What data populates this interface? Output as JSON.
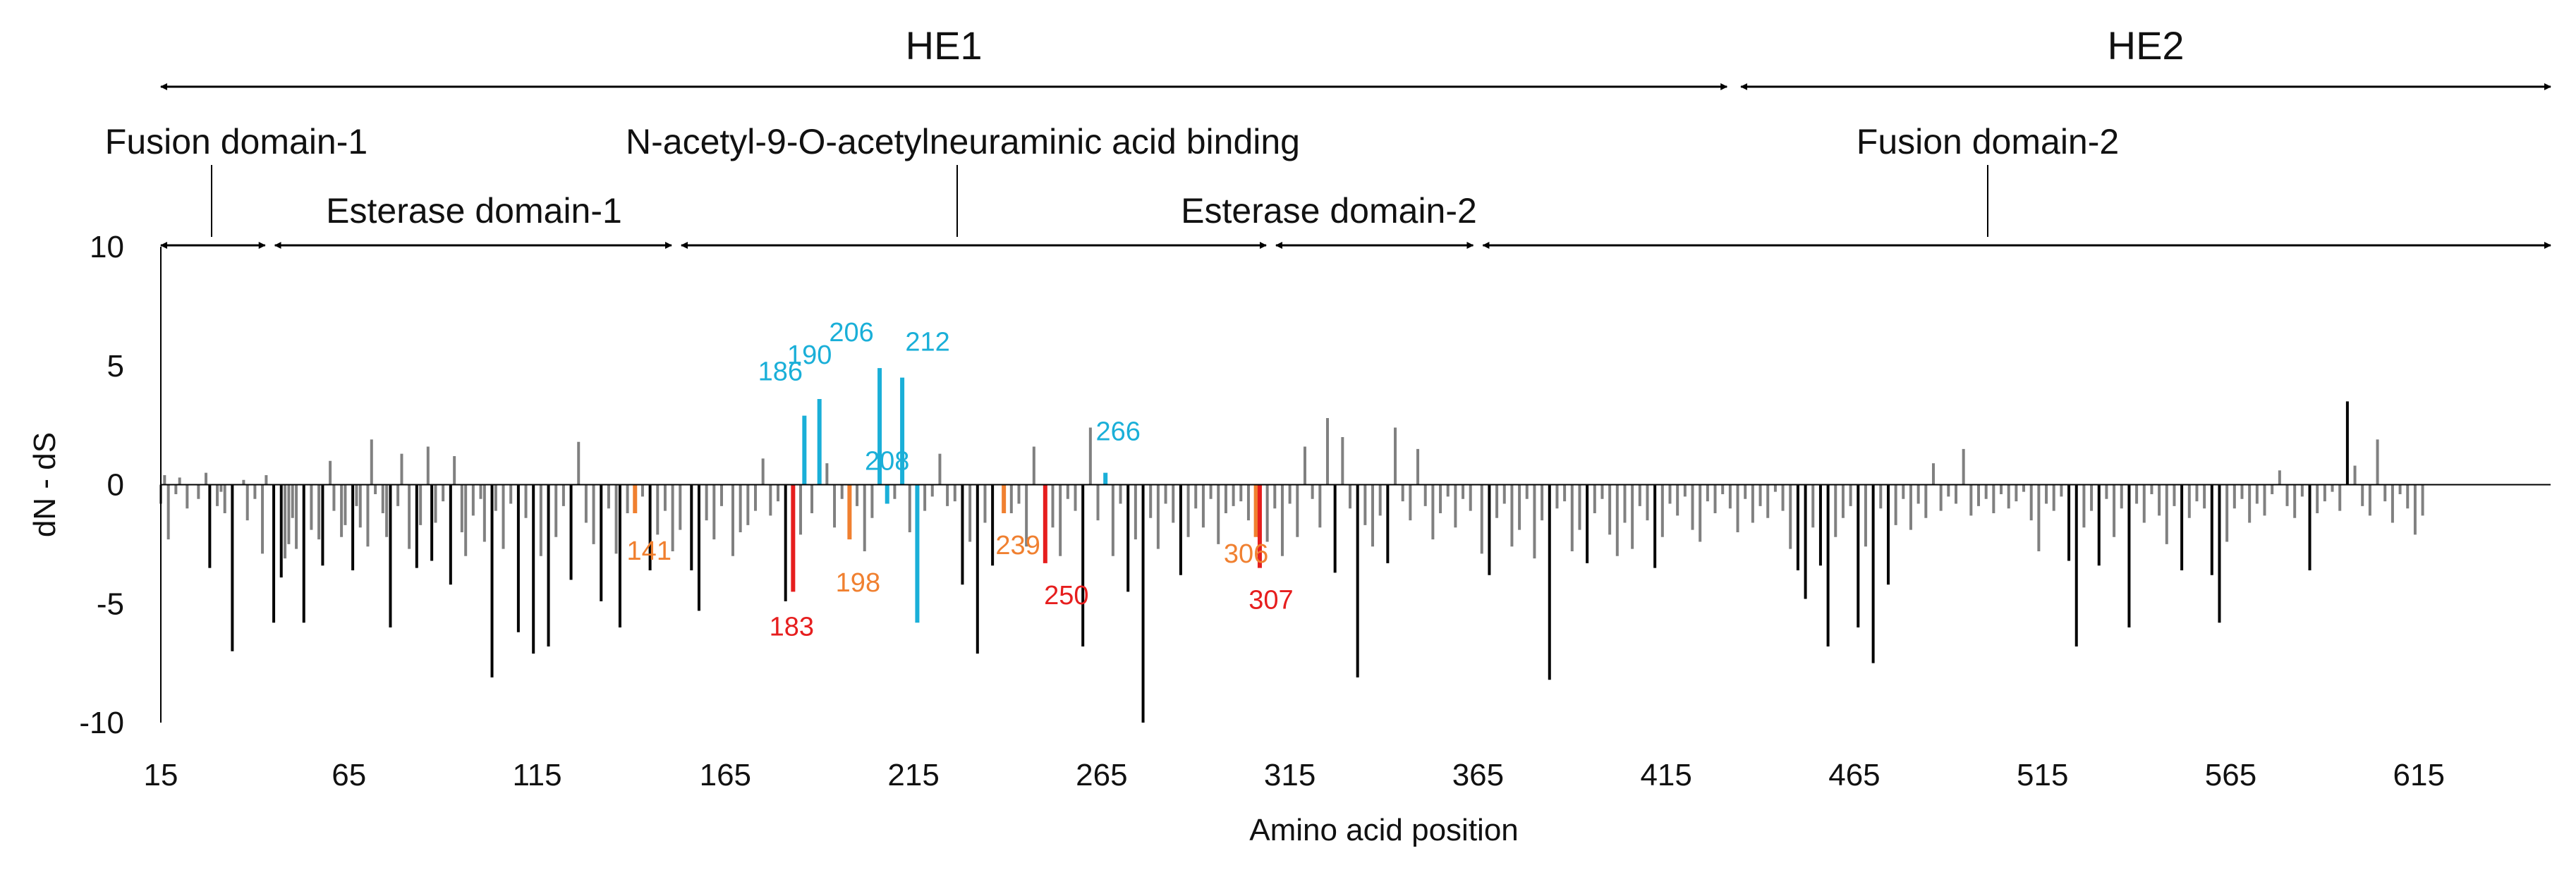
{
  "colors": {
    "gray": "#808080",
    "black": "#000000",
    "blue": "#1aafd8",
    "orange": "#f08030",
    "red": "#e61e1e",
    "yellow": "#e8a800",
    "text": "#111111"
  },
  "regions": [
    {
      "label": "HE1",
      "start": 15,
      "end": 433
    },
    {
      "label": "HE2",
      "start": 433,
      "end": 650
    }
  ],
  "domains": [
    {
      "label": "Fusion domain-1",
      "start": 15,
      "end": 44
    },
    {
      "label": "Esterase domain-1",
      "start": 44,
      "end": 152
    },
    {
      "label": "N-acetyl-9-O-acetylneuraminic acid binding",
      "start": 152,
      "end": 310
    },
    {
      "label": "Esterase domain-2",
      "start": 310,
      "end": 365
    },
    {
      "label": "Fusion domain-2",
      "start": 365,
      "end": 650
    }
  ],
  "chart_data": {
    "type": "bar",
    "title": "",
    "xlabel": "Amino acid position",
    "ylabel": "dN - dS",
    "xlim": [
      15,
      650
    ],
    "ylim": [
      -10,
      10
    ],
    "x_ticks": [
      15,
      65,
      115,
      165,
      215,
      265,
      315,
      365,
      415,
      465,
      515,
      565,
      615
    ],
    "y_ticks": [
      10,
      5,
      0,
      -5,
      -10
    ],
    "grid": false,
    "legend": "none",
    "labeled_sites": [
      {
        "position": 141,
        "value": -1.2,
        "color": "orange",
        "label": "141"
      },
      {
        "position": 183,
        "value": -4.5,
        "color": "red",
        "label": "183"
      },
      {
        "position": 186,
        "value": 2.9,
        "color": "blue",
        "label": "186"
      },
      {
        "position": 190,
        "value": 3.6,
        "color": "blue",
        "label": "190"
      },
      {
        "position": 198,
        "value": -2.3,
        "color": "orange",
        "label": "198"
      },
      {
        "position": 206,
        "value": 4.9,
        "color": "blue",
        "label": "206"
      },
      {
        "position": 208,
        "value": -0.8,
        "color": "blue",
        "label": "208"
      },
      {
        "position": 212,
        "value": 4.5,
        "color": "blue",
        "label": "212"
      },
      {
        "position": 216,
        "value": -5.8,
        "color": "blue",
        "label": ""
      },
      {
        "position": 239,
        "value": -1.2,
        "color": "orange",
        "label": "239"
      },
      {
        "position": 250,
        "value": -3.3,
        "color": "red",
        "label": "250"
      },
      {
        "position": 266,
        "value": 0.5,
        "color": "blue",
        "label": "266"
      },
      {
        "position": 306,
        "value": -2.2,
        "color": "orange",
        "label": "306"
      },
      {
        "position": 307,
        "value": -3.5,
        "color": "red",
        "label": "307"
      }
    ],
    "background_bars": {
      "description_colors": [
        "gray",
        "black"
      ],
      "positions": [
        15,
        16,
        17,
        19,
        20,
        22,
        25,
        27,
        28,
        30,
        31,
        32,
        34,
        37,
        38,
        40,
        42,
        43,
        45,
        47,
        48,
        49,
        50,
        51,
        53,
        55,
        57,
        58,
        60,
        61,
        63,
        64,
        66,
        67,
        68,
        70,
        71,
        72,
        74,
        75,
        76,
        78,
        79,
        81,
        83,
        84,
        86,
        87,
        88,
        90,
        92,
        93,
        95,
        96,
        98,
        100,
        101,
        103,
        104,
        106,
        108,
        110,
        112,
        114,
        116,
        118,
        120,
        122,
        124,
        126,
        128,
        130,
        132,
        134,
        136,
        137,
        139,
        143,
        145,
        147,
        149,
        151,
        153,
        156,
        158,
        160,
        162,
        164,
        167,
        169,
        171,
        173,
        175,
        177,
        179,
        181,
        185,
        188,
        192,
        194,
        196,
        200,
        202,
        204,
        210,
        214,
        218,
        220,
        222,
        224,
        226,
        228,
        230,
        232,
        234,
        236,
        241,
        243,
        245,
        247,
        252,
        254,
        256,
        258,
        260,
        262,
        264,
        268,
        270,
        272,
        274,
        276,
        278,
        280,
        282,
        284,
        286,
        288,
        290,
        292,
        294,
        296,
        298,
        300,
        302,
        304,
        309,
        311,
        313,
        315,
        317,
        319,
        321,
        323,
        325,
        327,
        329,
        331,
        333,
        335,
        337,
        339,
        341,
        343,
        345,
        347,
        349,
        351,
        353,
        355,
        357,
        359,
        361,
        363,
        366,
        368,
        370,
        372,
        374,
        376,
        378,
        380,
        382,
        384,
        386,
        388,
        390,
        392,
        394,
        396,
        398,
        400,
        402,
        404,
        406,
        408,
        410,
        412,
        414,
        416,
        418,
        420,
        422,
        424,
        426,
        428,
        430,
        432,
        434,
        436,
        438,
        440,
        442,
        444,
        446,
        448,
        450,
        452,
        454,
        456,
        458,
        460,
        462,
        464,
        466,
        468,
        470,
        472,
        474,
        476,
        478,
        480,
        482,
        484,
        486,
        488,
        490,
        492,
        494,
        496,
        498,
        500,
        502,
        504,
        506,
        508,
        510,
        512,
        514,
        516,
        518,
        520,
        522,
        524,
        526,
        528,
        530,
        532,
        534,
        536,
        538,
        540,
        542,
        544,
        546,
        548,
        550,
        552,
        554,
        556,
        558,
        560,
        562,
        564,
        566,
        568,
        570,
        572,
        574,
        576,
        578,
        580,
        582,
        584,
        586,
        588,
        590,
        592,
        594,
        596,
        598,
        600,
        602,
        604,
        606,
        608,
        610,
        612,
        614,
        616,
        618,
        620,
        622,
        624,
        626,
        628,
        630,
        632,
        634,
        636,
        638,
        640,
        642,
        644,
        646,
        648
      ],
      "values": [
        -0.8,
        0.4,
        -2.3,
        -0.4,
        0.3,
        -1.0,
        -0.6,
        0.5,
        -3.5,
        -0.9,
        -0.3,
        -1.2,
        -7.0,
        0.2,
        -1.5,
        -0.6,
        -2.9,
        0.4,
        -5.8,
        -3.9,
        -3.1,
        -2.5,
        -1.4,
        -2.7,
        -5.8,
        -1.9,
        -2.3,
        -3.4,
        1.0,
        -1.1,
        -2.2,
        -1.7,
        -3.6,
        -0.9,
        -1.8,
        -2.6,
        1.9,
        -0.4,
        -1.2,
        -2.2,
        -6.0,
        -0.9,
        1.3,
        -2.7,
        -3.5,
        -1.7,
        1.6,
        -3.2,
        -1.6,
        -0.7,
        -4.2,
        1.2,
        -2.0,
        -3.0,
        -1.3,
        -0.6,
        -2.4,
        -8.1,
        -1.1,
        -2.7,
        -0.8,
        -6.2,
        -1.4,
        -7.1,
        -3.0,
        -6.8,
        -2.2,
        -0.9,
        -4.0,
        1.8,
        -1.6,
        -2.5,
        -4.9,
        -1.0,
        -2.9,
        -6.0,
        -1.2,
        -0.5,
        -3.6,
        -2.1,
        -1.1,
        -2.8,
        -1.9,
        -3.6,
        -5.3,
        -1.5,
        -2.3,
        -0.9,
        -3.0,
        -2.0,
        -1.7,
        -1.1,
        1.1,
        -1.3,
        -0.7,
        -4.9,
        -2.1,
        -1.2,
        0.9,
        -1.8,
        -0.6,
        -0.9,
        -2.8,
        -1.4,
        -0.6,
        -2.0,
        -1.1,
        -0.5,
        1.3,
        -0.9,
        -0.7,
        -4.2,
        -2.4,
        -7.1,
        -1.6,
        -3.4,
        -1.2,
        -0.8,
        -2.6,
        1.6,
        -1.8,
        -3.0,
        -0.6,
        -1.1,
        -6.8,
        2.4,
        -1.5,
        -3.0,
        -0.8,
        -4.5,
        -2.3,
        -10.0,
        -1.4,
        -2.7,
        -0.8,
        -1.6,
        -3.8,
        -2.2,
        -1.0,
        -1.8,
        -0.6,
        -2.5,
        -1.2,
        -0.9,
        -0.7,
        -1.5,
        -2.4,
        -1.0,
        -3.0,
        -0.8,
        -2.2,
        1.6,
        -0.6,
        -1.8,
        2.8,
        -3.7,
        2.0,
        -1.0,
        -8.1,
        -1.7,
        -2.6,
        -1.3,
        -3.3,
        2.4,
        -0.7,
        -1.5,
        1.5,
        -0.9,
        -2.3,
        -1.2,
        -0.5,
        -1.8,
        -0.6,
        -1.1,
        -2.9,
        -3.8,
        -1.4,
        -0.8,
        -2.6,
        -1.9,
        -0.6,
        -3.1,
        -1.5,
        -8.2,
        -1.0,
        -0.7,
        -2.8,
        -1.9,
        -3.3,
        -1.2,
        -0.6,
        -2.1,
        -3.0,
        -1.6,
        -2.7,
        -0.9,
        -1.5,
        -3.5,
        -2.2,
        -0.8,
        -1.3,
        -0.5,
        -1.9,
        -2.4,
        -0.7,
        -1.2,
        -0.4,
        -1.0,
        -2.0,
        -0.6,
        -1.6,
        -0.9,
        -1.4,
        -0.3,
        -1.1,
        -2.7,
        -3.6,
        -4.8,
        -1.8,
        -3.4,
        -6.8,
        -2.2,
        -1.4,
        -0.9,
        -6.0,
        -2.6,
        -7.5,
        -1.0,
        -4.2,
        -1.7,
        -0.6,
        -1.9,
        -0.8,
        -1.4,
        0.9,
        -1.1,
        -0.5,
        -0.8,
        1.5,
        -1.3,
        -0.9,
        -0.6,
        -1.2,
        -0.4,
        -1.0,
        -0.7,
        -0.3,
        -1.5,
        -2.8,
        -0.8,
        -1.1,
        -0.5,
        -3.2,
        -6.8,
        -1.8,
        -1.1,
        -3.4,
        -0.6,
        -2.2,
        -1.0,
        -6.0,
        -0.8,
        -1.6,
        -0.4,
        -1.3,
        -2.5,
        -0.9,
        -3.6,
        -1.4,
        -0.7,
        -1.0,
        -3.8,
        -5.8,
        -2.4,
        -1.0,
        -0.6,
        -1.6,
        -0.8,
        -1.3,
        -0.4,
        0.6,
        -0.9,
        -1.4,
        -0.5,
        -3.6,
        -1.2,
        -0.7,
        -0.3,
        -1.1,
        3.5,
        0.8,
        -0.9,
        -1.3,
        1.9,
        -0.7,
        -1.6,
        -0.4,
        -1.0,
        -2.1,
        -1.3
      ]
    }
  }
}
